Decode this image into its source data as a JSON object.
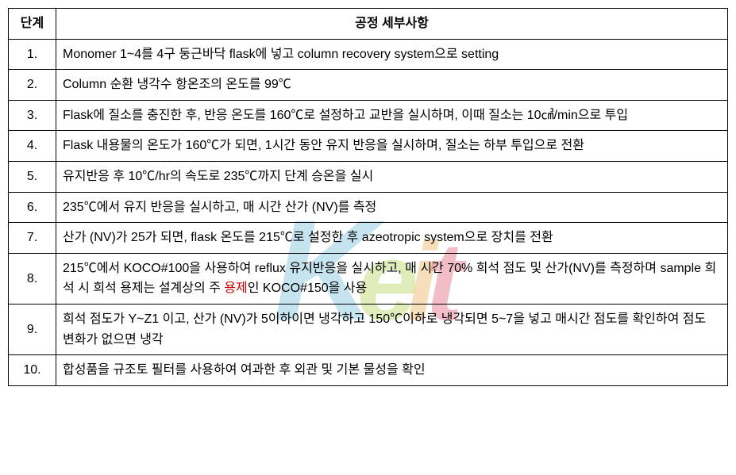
{
  "table": {
    "headers": {
      "step": "단계",
      "detail": "공정 세부사항"
    },
    "rows": [
      {
        "step": "1.",
        "detail": "Monomer 1~4를 4구 둥근바닥 flask에 넣고 column recovery system으로 setting"
      },
      {
        "step": "2.",
        "detail": "Column 순환 냉각수 항온조의 온도를 99℃"
      },
      {
        "step": "3.",
        "detail": "Flask에 질소를 충진한 후, 반응 온도를 160℃로 설정하고 교반을 실시하며, 이때 질소는 10㎤/min으로 투입"
      },
      {
        "step": "4.",
        "detail": "Flask 내용물의 온도가 160℃가 되면, 1시간 동안 유지 반응을 실시하며, 질소는 하부 투입으로 전환"
      },
      {
        "step": "5.",
        "detail": "유지반응 후 10℃/hr의 속도로 235℃까지 단계 승온을 실시"
      },
      {
        "step": "6.",
        "detail": "235℃에서 유지 반응을 실시하고, 매 시간 산가 (NV)를 측정"
      },
      {
        "step": "7.",
        "detail": "산가 (NV)가 25가 되면, flask 온도를 215℃로 설정한 후 azeotropic system으로 장치를 전환"
      },
      {
        "step": "8.",
        "detail_parts": [
          {
            "text": "215℃에서 KOCO#100을 사용하여 reflux 유지반응을 실시하고, 매 시간 70% 희석 점도 및 산가(NV)를 측정하며 sample 희석 시 희석 용제는 설계상의 주 ",
            "red": false
          },
          {
            "text": "용제",
            "red": true
          },
          {
            "text": "인 KOCO#150을 사용",
            "red": false
          }
        ]
      },
      {
        "step": "9.",
        "detail": "희석 점도가 Y~Z1 이고, 산가 (NV)가 5이하이면 냉각하고 150℃이하로 냉각되면 5~7을 넣고 매시간 점도를 확인하여 점도 변화가 없으면 냉각"
      },
      {
        "step": "10.",
        "detail": "합성품을 규조토 필터를 사용하여 여과한 후 외관 및 기본 물성을 확인"
      }
    ]
  },
  "watermark": {
    "text": "Keit",
    "repeat_text": "KEIT KEIT KEIT"
  },
  "styling": {
    "border_color": "#000000",
    "font_size": 16,
    "header_font_weight": "bold",
    "red_color": "#cc0000",
    "background_color": "#ffffff",
    "watermark_colors": {
      "k": "#5fb5d6",
      "e": "#a8cc3f",
      "i": "#e8a23c",
      "t": "#d94560"
    }
  }
}
